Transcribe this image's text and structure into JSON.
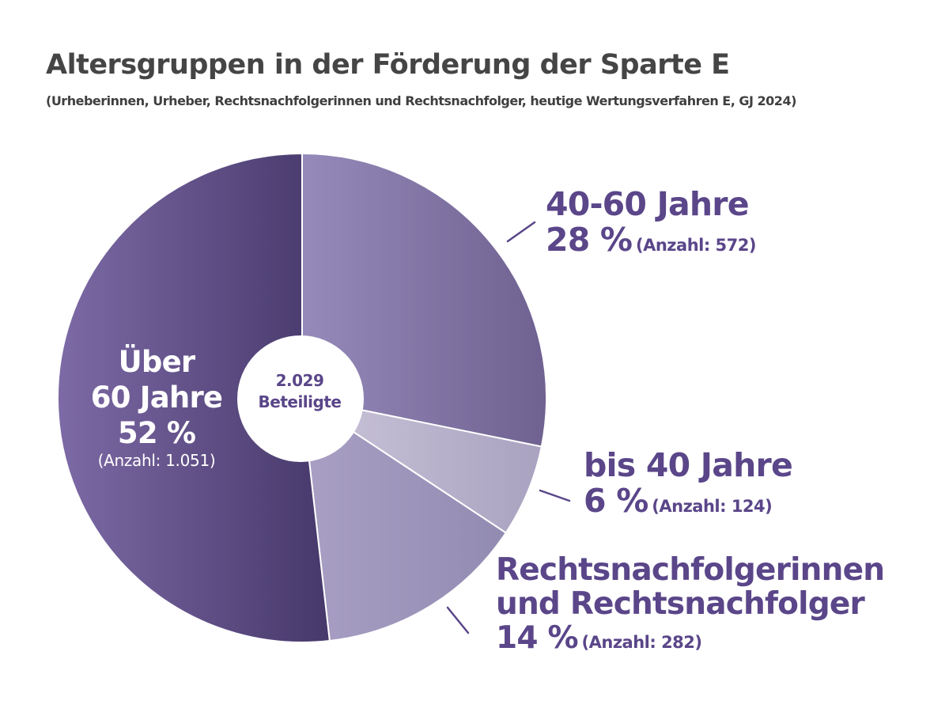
{
  "chart_data": {
    "type": "pie",
    "title": "Altersgruppen in der Förderung der Sparte E",
    "subtitle": "(Urheberinnen, Urheber, Rechtsnachfolgerinnen und Rechtsnachfolger, heutige Wertungsverfahren E, GJ 2024)",
    "center_label": {
      "total": "2.029",
      "unit": "Beteiligte"
    },
    "slices": [
      {
        "key": "4060",
        "name": "40-60 Jahre",
        "percent_label": "28 %",
        "count_label": "(Anzahl: 572)",
        "value": 572,
        "percent": 28,
        "colors": [
          "#958aba",
          "#6f6190"
        ]
      },
      {
        "key": "bis40",
        "name": "bis 40 Jahre",
        "percent_label": "6 %",
        "count_label": "(Anzahl: 124)",
        "value": 124,
        "percent": 6,
        "colors": [
          "#cbc5da",
          "#a9a2c0"
        ]
      },
      {
        "key": "rn",
        "name_line1": "Rechtsnachfolgerinnen",
        "name_line2": "und Rechtsnachfolger",
        "percent_label": "14 %",
        "count_label": "(Anzahl: 282)",
        "value": 282,
        "percent": 14,
        "colors": [
          "#a99fc4",
          "#928bb1"
        ]
      },
      {
        "key": "ueber60",
        "name_line1": "Über",
        "name_line2": "60 Jahre",
        "percent_label": "52 %",
        "count_label": "(Anzahl: 1.051)",
        "value": 1051,
        "percent": 52,
        "colors": [
          "#7d6aa6",
          "#46386a"
        ]
      }
    ]
  }
}
